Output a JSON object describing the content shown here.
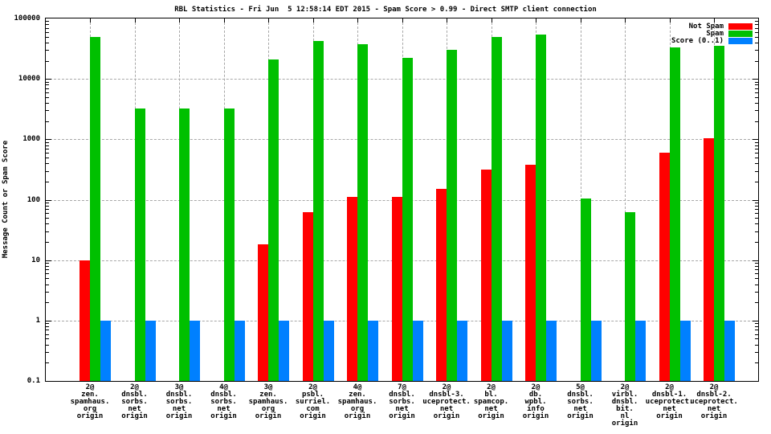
{
  "title": "RBL Statistics - Fri Jun  5 12:58:14 EDT 2015 - Spam Score > 0.99 - Direct SMTP client connection",
  "ylabel": "Message Count or Spam Score",
  "colors": {
    "not_spam": "#ff0000",
    "spam": "#00c000",
    "score": "#0080ff",
    "grid": "#a8a8a8",
    "axis": "#000000",
    "background": "#ffffff"
  },
  "chart_data": {
    "type": "bar",
    "scale": "log",
    "ylim": [
      0.1,
      100000
    ],
    "grid": true,
    "legend_position": "top-right-inside",
    "ytick_labels": [
      "0.1",
      "1",
      "10",
      "100",
      "1000",
      "10000",
      "100000"
    ],
    "xlabel": "",
    "categories": [
      [
        "2@",
        "zen.",
        "spamhaus.",
        "org",
        "origin"
      ],
      [
        "2@",
        "dnsbl.",
        "sorbs.",
        "net",
        "origin"
      ],
      [
        "3@",
        "dnsbl.",
        "sorbs.",
        "net",
        "origin"
      ],
      [
        "4@",
        "dnsbl.",
        "sorbs.",
        "net",
        "origin"
      ],
      [
        "3@",
        "zen.",
        "spamhaus.",
        "org",
        "origin"
      ],
      [
        "2@",
        "psbl.",
        "surriel.",
        "com",
        "origin"
      ],
      [
        "4@",
        "zen.",
        "spamhaus.",
        "org",
        "origin"
      ],
      [
        "7@",
        "dnsbl.",
        "sorbs.",
        "net",
        "origin"
      ],
      [
        "2@",
        "dnsbl-3.",
        "uceprotect.",
        "net",
        "origin"
      ],
      [
        "2@",
        "bl.",
        "spamcop.",
        "net",
        "origin"
      ],
      [
        "2@",
        "db.",
        "wpbl.",
        "info",
        "origin"
      ],
      [
        "5@",
        "dnsbl.",
        "sorbs.",
        "net",
        "origin"
      ],
      [
        "2@",
        "virbl.",
        "dnsbl.",
        "bit.",
        "nl",
        "origin"
      ],
      [
        "2@",
        "dnsbl-1.",
        "uceprotect.",
        "net",
        "origin"
      ],
      [
        "2@",
        "dnsbl-2.",
        "uceprotect.",
        "net",
        "origin"
      ]
    ],
    "series": [
      {
        "name": "Not Spam",
        "color": "#ff0000",
        "values": [
          10,
          null,
          null,
          null,
          18,
          62,
          110,
          110,
          150,
          320,
          380,
          null,
          null,
          600,
          1050
        ]
      },
      {
        "name": "Spam",
        "color": "#00c000",
        "values": [
          50000,
          3200,
          3200,
          3200,
          21000,
          42000,
          37000,
          22000,
          30000,
          50000,
          55000,
          105,
          62,
          33000,
          35000
        ]
      },
      {
        "name": "Score (0..1)",
        "color": "#0080ff",
        "values": [
          1,
          1,
          1,
          1,
          1,
          1,
          1,
          1,
          1,
          1,
          1,
          1,
          1,
          1,
          1
        ]
      }
    ]
  }
}
